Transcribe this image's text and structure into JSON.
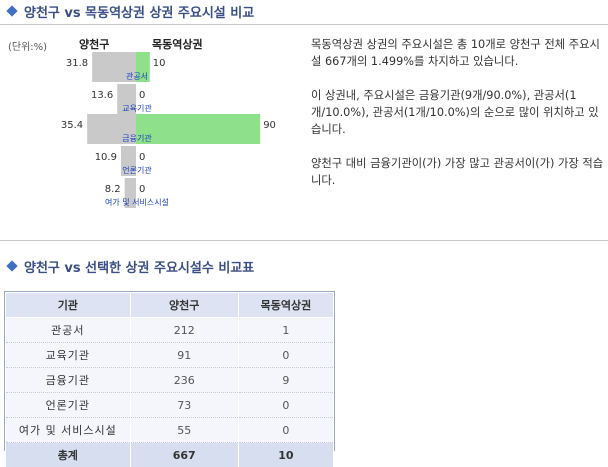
{
  "section1": {
    "title": "양천구 vs 목동역상권 상권 주요시설 비교"
  },
  "chart_data": {
    "type": "bar",
    "orientation": "horizontal-diverging",
    "unit_label": "(단위:%)",
    "left_series_label": "양천구",
    "right_series_label": "목동역상권",
    "categories": [
      "관공서",
      "교육기관",
      "금융기관",
      "언론기관",
      "여가 및 서비스시설"
    ],
    "series": [
      {
        "name": "양천구",
        "values": [
          31.8,
          13.6,
          35.4,
          10.9,
          8.2
        ],
        "color": "#c9c9c9"
      },
      {
        "name": "목동역상권",
        "values": [
          10,
          0,
          90,
          0,
          0
        ],
        "color": "#8ee08a"
      }
    ],
    "value_labels_left": [
      "31.8",
      "13.6",
      "35.4",
      "10.9",
      "8.2"
    ],
    "value_labels_right": [
      "10",
      "0",
      "90",
      "0",
      "0"
    ],
    "category_label_color": "#1a3fc4"
  },
  "description": {
    "p1": "목동역상권 상권의 주요시설은 총 10개로 양천구 전체 주요시설 667개의 1.499%를 차지하고 있습니다.",
    "p2": "이 상권내, 주요시설은 금융기관(9개/90.0%), 관공서(1개/10.0%), 관공서(1개/10.0%)의 순으로 많이 위치하고 있습니다.",
    "p3": "양천구 대비 금융기관이(가) 가장 많고 관공서이(가) 가장 적습니다."
  },
  "section2": {
    "title": "양천구 vs 선택한 상권 주요시설수 비교표"
  },
  "table": {
    "headers": [
      "기관",
      "양천구",
      "목동역상권"
    ],
    "rows": [
      [
        "관공서",
        "212",
        "1"
      ],
      [
        "교육기관",
        "91",
        "0"
      ],
      [
        "금융기관",
        "236",
        "9"
      ],
      [
        "언론기관",
        "73",
        "0"
      ],
      [
        "여가 및 서비스시설",
        "55",
        "0"
      ]
    ],
    "total": [
      "총계",
      "667",
      "10"
    ]
  }
}
